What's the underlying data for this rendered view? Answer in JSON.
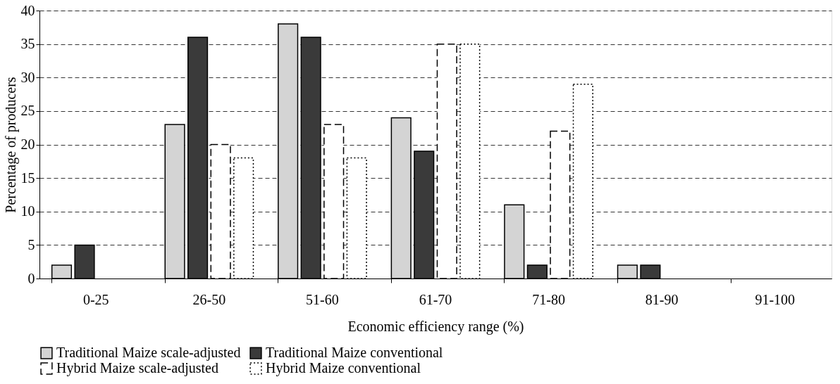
{
  "chart_data": {
    "type": "bar",
    "xlabel": "Economic efficiency range (%)",
    "ylabel": "Percentage of producers",
    "categories": [
      "0-25",
      "26-50",
      "51-60",
      "61-70",
      "71-80",
      "81-90",
      "91-100"
    ],
    "series": [
      {
        "name": "Traditional Maize scale-adjusted",
        "color": "#d4d4d4",
        "line_style": "solid",
        "values": [
          2,
          23,
          38,
          24,
          11,
          2,
          0
        ]
      },
      {
        "name": "Traditional Maize conventional",
        "color": "#3a3a3a",
        "line_style": "solid",
        "values": [
          5,
          36,
          36,
          19,
          2,
          2,
          0
        ]
      },
      {
        "name": "Hybrid Maize scale-adjusted",
        "color": "#ffffff",
        "line_style": "dashed",
        "values": [
          0,
          20,
          23,
          35,
          22,
          0,
          0
        ]
      },
      {
        "name": "Hybrid Maize conventional",
        "color": "#ffffff",
        "line_style": "dotted",
        "values": [
          0,
          18,
          18,
          35,
          29,
          0,
          0
        ]
      }
    ],
    "ylim": [
      0,
      40
    ],
    "yticks": [
      0,
      5,
      10,
      15,
      20,
      25,
      30,
      35,
      40
    ],
    "grid": "y",
    "legend": "bottom"
  }
}
